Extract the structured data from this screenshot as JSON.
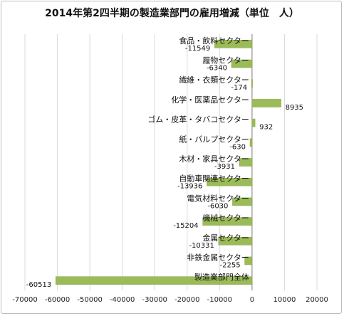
{
  "chart_data": {
    "type": "bar",
    "orientation": "horizontal",
    "title": "2014年第2四半期の製造業部門の雇用増減（単位　人）",
    "categories": [
      "食品・飲料セクター",
      "履物セクター",
      "繊維・衣類セクター",
      "化学・医薬品セクター",
      "ゴム・皮革・タバコセクター",
      "紙・パルプセクター",
      "木材・家具セクター",
      "自動車関連セクター",
      "電気材料セクター",
      "機械セクター",
      "金属セクター",
      "非鉄金属セクター",
      "製造業部門全体"
    ],
    "values": [
      -11549,
      -6340,
      -174,
      8935,
      932,
      -630,
      -3931,
      -13936,
      -6030,
      -15204,
      -10331,
      -2255,
      -60513
    ],
    "data_labels": [
      "-11549",
      "-6340",
      "-174",
      "8935",
      "932",
      "-630",
      "-3931",
      "-13936",
      "-6030",
      "-15204",
      "-10331",
      "-2255",
      "-60513"
    ],
    "xlim": [
      -70000,
      20000
    ],
    "x_ticks": [
      -70000,
      -60000,
      -50000,
      -40000,
      -30000,
      -20000,
      -10000,
      0,
      10000,
      20000
    ],
    "x_tick_labels": [
      "-70000",
      "-60000",
      "-50000",
      "-40000",
      "-30000",
      "-20000",
      "-10000",
      "0",
      "10000",
      "20000"
    ],
    "grid": "vertical",
    "legend": "none",
    "bar_color": "#9bbb59",
    "bar_edge_color": "#8aa84e"
  }
}
